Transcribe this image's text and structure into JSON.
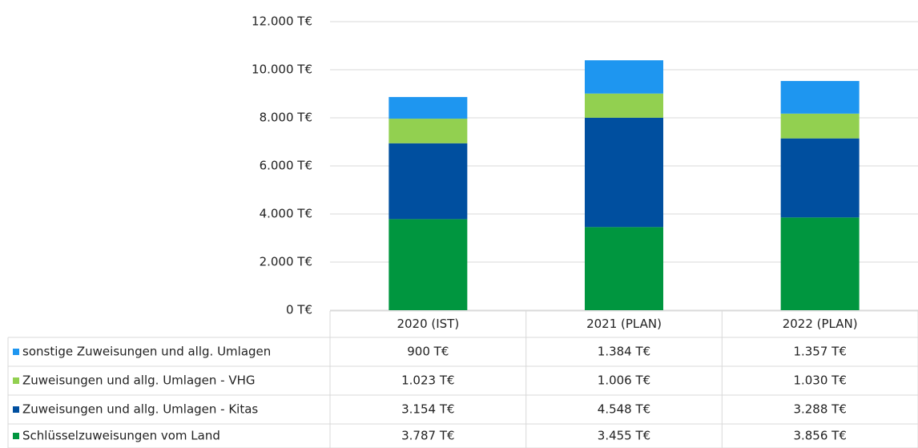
{
  "chart_data": {
    "type": "bar",
    "stacked": true,
    "categories": [
      "2020 (IST)",
      "2021 (PLAN)",
      "2022 (PLAN)"
    ],
    "series": [
      {
        "name": "Schlüsselzuweisungen vom Land",
        "color": "#00963f",
        "values": [
          3787,
          3455,
          3856
        ],
        "value_labels": [
          "3.787 T€",
          "3.455 T€",
          "3.856 T€"
        ]
      },
      {
        "name": "Zuweisungen und allg. Umlagen - Kitas",
        "color": "#004f9f",
        "values": [
          3154,
          4548,
          3288
        ],
        "value_labels": [
          "3.154 T€",
          "4.548 T€",
          "3.288 T€"
        ]
      },
      {
        "name": "Zuweisungen und allg. Umlagen - VHG",
        "color": "#92d050",
        "values": [
          1023,
          1006,
          1030
        ],
        "value_labels": [
          "1.023 T€",
          "1.006 T€",
          "1.030 T€"
        ]
      },
      {
        "name": "sonstige Zuweisungen und allg. Umlagen",
        "color": "#1e96f0",
        "values": [
          900,
          1384,
          1357
        ],
        "value_labels": [
          "900 T€",
          "1.384 T€",
          "1.357 T€"
        ]
      }
    ],
    "ylim": [
      0,
      12000
    ],
    "yticks": [
      {
        "value": 0,
        "label": "0 T€"
      },
      {
        "value": 2000,
        "label": "2.000 T€"
      },
      {
        "value": 4000,
        "label": "4.000 T€"
      },
      {
        "value": 6000,
        "label": "6.000 T€"
      },
      {
        "value": 8000,
        "label": "8.000 T€"
      },
      {
        "value": 10000,
        "label": "10.000 T€"
      },
      {
        "value": 12000,
        "label": "12.000 T€"
      }
    ],
    "grid": true,
    "legend": "data-table"
  }
}
